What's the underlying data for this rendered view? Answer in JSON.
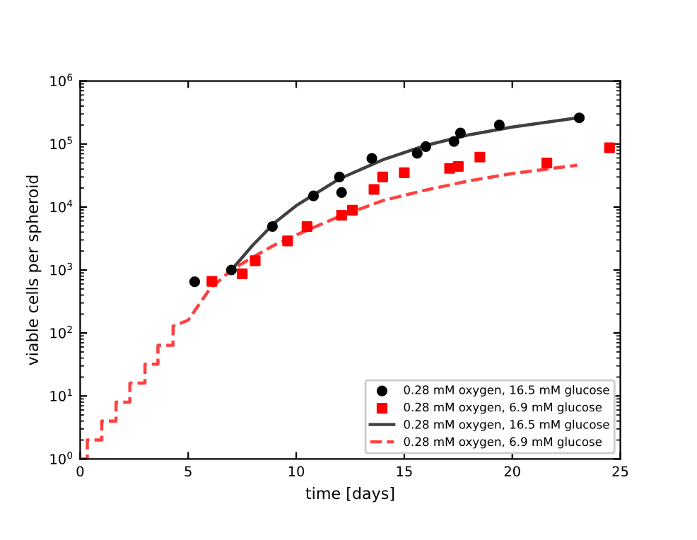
{
  "chart_data": {
    "type": "scatter",
    "xlabel": "time [days]",
    "ylabel": "viable cells per spheroid",
    "log": "y",
    "legend": "bottom right",
    "grid": false,
    "xlim": [
      0,
      25
    ],
    "xticks": [
      0,
      5,
      10,
      15,
      20,
      25
    ],
    "ylim": [
      1,
      1000000
    ],
    "yticks": [
      {
        "value": 1,
        "label": "10$^{0}$"
      },
      {
        "value": 10,
        "label": "10$^{1}$"
      },
      {
        "value": 100,
        "label": "10$^{2}$"
      },
      {
        "value": 1000,
        "label": "10$^{3}$"
      },
      {
        "value": 10000,
        "label": "10$^{4}$"
      },
      {
        "value": 100000,
        "label": "10$^{5}$"
      },
      {
        "value": 1000000,
        "label": "10$^{6}$"
      }
    ],
    "series": [
      {
        "name": "0.28 mM oxygen, 16.5 mM glucose",
        "marker": "circle",
        "color": "#000000",
        "x": [
          5.3,
          7.0,
          8.9,
          10.8,
          12.0,
          12.1,
          13.5,
          15.6,
          16.0,
          17.3,
          17.6,
          19.4,
          23.1
        ],
        "values": [
          650,
          1000,
          4900,
          15000,
          30000,
          17000,
          59000,
          71000,
          91000,
          110000,
          150000,
          200000,
          260000
        ]
      },
      {
        "name": "0.28 mM oxygen, 6.9 mM glucose",
        "marker": "square",
        "color": "#ff0000",
        "x": [
          6.1,
          7.5,
          8.1,
          9.6,
          10.5,
          12.1,
          12.6,
          13.6,
          14.0,
          15.0,
          17.1,
          17.5,
          18.5,
          21.6,
          24.5
        ],
        "values": [
          660,
          870,
          1400,
          2900,
          4900,
          7400,
          8900,
          19000,
          30000,
          35000,
          41000,
          44000,
          62000,
          50000,
          87000
        ]
      },
      {
        "name": "0.28 mM oxygen, 16.5 mM glucose",
        "type": "line",
        "line_style": "solid",
        "color": "#404040",
        "x": [
          7,
          8,
          9,
          10,
          12,
          14,
          16,
          18,
          20,
          23
        ],
        "values": [
          1000,
          2500,
          5600,
          10500,
          28000,
          56000,
          95000,
          140000,
          186000,
          260000
        ]
      },
      {
        "name": "0.28 mM oxygen, 6.9 mM glucose",
        "type": "line",
        "line_style": "dashed",
        "color": "#ff4040",
        "x": [
          0,
          0.33,
          0.33,
          1.0,
          1.0,
          1.66,
          1.66,
          2.3,
          2.3,
          3.0,
          3.0,
          3.6,
          3.6,
          4.3,
          4.3,
          5,
          6,
          7,
          8,
          9,
          10,
          12,
          14,
          16,
          18,
          20,
          23
        ],
        "values": [
          1,
          1,
          2,
          2,
          4,
          4,
          8,
          8,
          16,
          16,
          32,
          32,
          64,
          64,
          128,
          160,
          500,
          1000,
          1600,
          2500,
          3600,
          7100,
          12600,
          18600,
          26000,
          34000,
          46000
        ]
      }
    ]
  }
}
